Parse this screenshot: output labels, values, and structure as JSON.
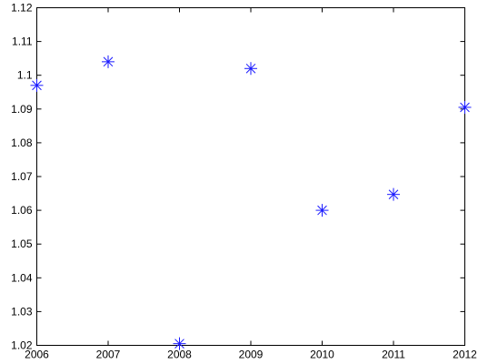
{
  "chart_data": {
    "type": "scatter",
    "title": "",
    "xlabel": "",
    "ylabel": "",
    "xlim": [
      2006,
      2012
    ],
    "ylim": [
      1.02,
      1.12
    ],
    "grid": false,
    "marker": "asterisk",
    "colors": {
      "marker": "#1a1aff",
      "axes": "#000000",
      "background": "#ffffff"
    },
    "x_ticks": [
      2006,
      2007,
      2008,
      2009,
      2010,
      2011,
      2012
    ],
    "x_tick_labels": [
      "2006",
      "2007",
      "2008",
      "2009",
      "2010",
      "2011",
      "2012"
    ],
    "y_ticks": [
      1.02,
      1.03,
      1.04,
      1.05,
      1.06,
      1.07,
      1.08,
      1.09,
      1.1,
      1.11,
      1.12
    ],
    "y_tick_labels": [
      "1.02",
      "1.03",
      "1.04",
      "1.05",
      "1.06",
      "1.07",
      "1.08",
      "1.09",
      "1.1",
      "1.11",
      "1.12"
    ],
    "series": [
      {
        "x": [
          2006,
          2007,
          2008,
          2009,
          2010,
          2011,
          2012
        ],
        "y": [
          1.097,
          1.104,
          1.0205,
          1.102,
          1.06,
          1.0647,
          1.0905
        ]
      }
    ]
  }
}
